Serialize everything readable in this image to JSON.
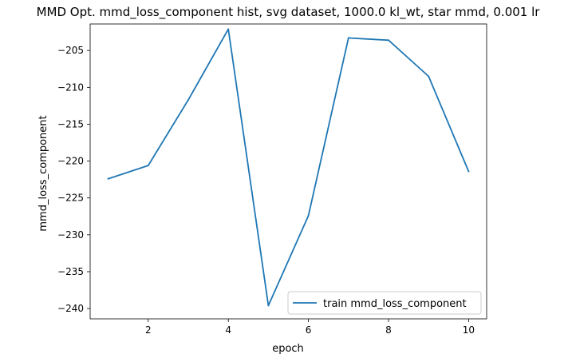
{
  "chart_data": {
    "type": "line",
    "title": "MMD Opt. mmd_loss_component hist, svg dataset, 1000.0 kl_wt, star mmd, 0.001 lr",
    "xlabel": "epoch",
    "ylabel": "mmd_loss_component",
    "xlim": [
      0.55,
      10.45
    ],
    "ylim": [
      -241.4,
      -201.4
    ],
    "xticks": [
      2,
      4,
      6,
      8,
      10
    ],
    "yticks": [
      -240,
      -235,
      -230,
      -225,
      -220,
      -215,
      -210,
      -205
    ],
    "grid": false,
    "legend_position": "lower right",
    "series": [
      {
        "name": "train mmd_loss_component",
        "color": "#1f77b4",
        "x": [
          1,
          2,
          3,
          4,
          5,
          6,
          7,
          8,
          9,
          10
        ],
        "y": [
          -222.4,
          -220.6,
          -211.7,
          -202.1,
          -239.6,
          -227.4,
          -203.3,
          -203.6,
          -208.5,
          -221.4
        ]
      }
    ]
  }
}
